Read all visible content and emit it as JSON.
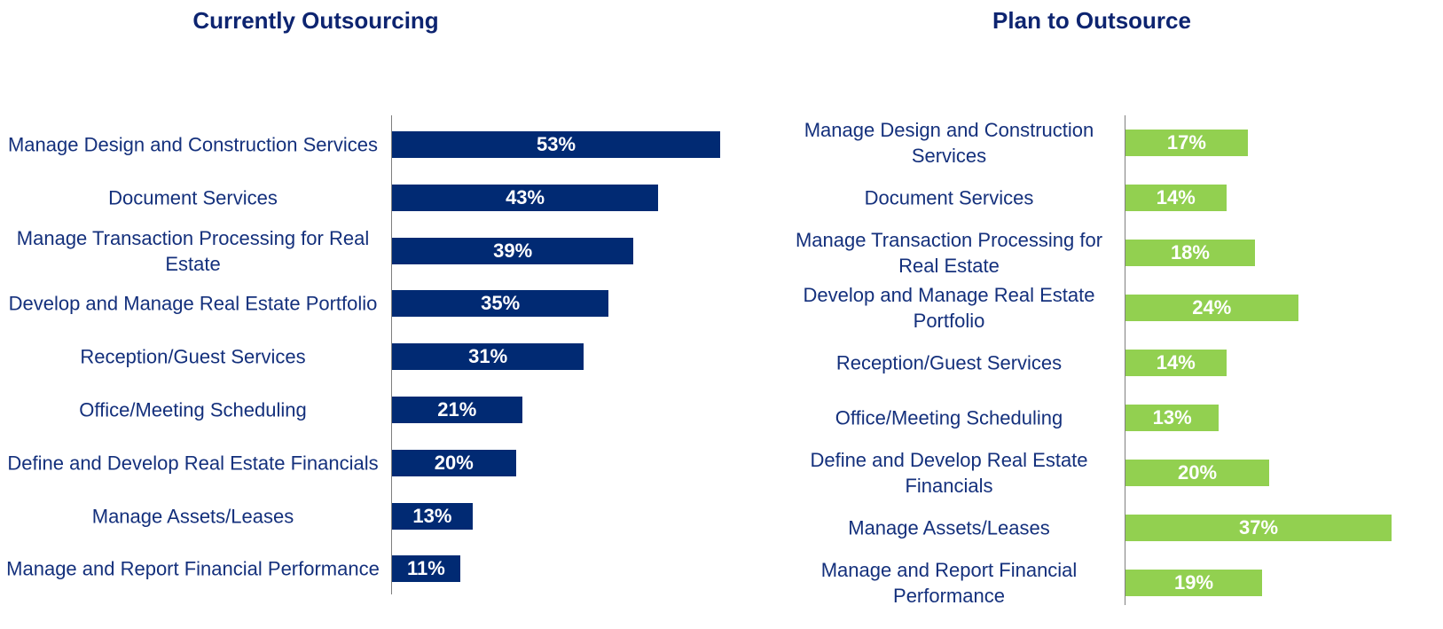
{
  "chart_data": [
    {
      "type": "bar",
      "orientation": "horizontal",
      "title": "Currently Outsourcing",
      "color": "#012a73",
      "categories": [
        "Manage Design and Construction Services",
        "Document Services",
        "Manage Transaction Processing for Real Estate",
        "Develop and Manage Real Estate Portfolio",
        "Reception/Guest Services",
        "Office/Meeting Scheduling",
        "Define and Develop Real Estate Financials",
        "Manage Assets/Leases",
        "Manage and Report Financial Performance"
      ],
      "values": [
        53,
        43,
        39,
        35,
        31,
        21,
        20,
        13,
        11
      ],
      "value_labels": [
        "53%",
        "43%",
        "39%",
        "35%",
        "31%",
        "21%",
        "20%",
        "13%",
        "11%"
      ]
    },
    {
      "type": "bar",
      "orientation": "horizontal",
      "title": "Plan to Outsource",
      "color": "#92d050",
      "categories": [
        "Manage Design and Construction Services",
        "Document Services",
        "Manage Transaction Processing for Real Estate",
        "Develop and Manage Real Estate Portfolio",
        "Reception/Guest Services",
        "Office/Meeting Scheduling",
        "Define and Develop Real Estate Financials",
        "Manage Assets/Leases",
        "Manage and Report Financial Performance"
      ],
      "values": [
        17,
        14,
        18,
        24,
        14,
        13,
        20,
        37,
        19
      ],
      "value_labels": [
        "17%",
        "14%",
        "18%",
        "24%",
        "14%",
        "13%",
        "20%",
        "37%",
        "19%"
      ]
    }
  ]
}
